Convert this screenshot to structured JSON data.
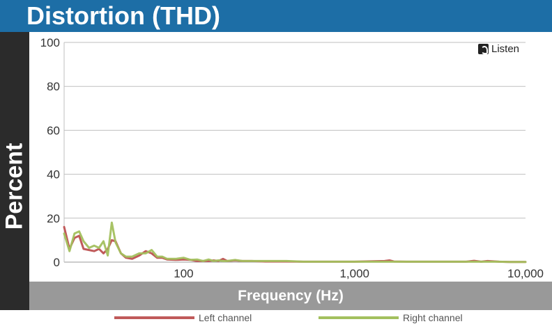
{
  "title": "Distortion (THD)",
  "brand": "Listen",
  "colors": {
    "title_bg": "#1d6ea6",
    "ylabel_bg": "#2b2b2b",
    "xlabel_bg": "#999999",
    "left": "#c05a5a",
    "right": "#a3c05e",
    "grid": "#bfbfbf"
  },
  "chart_data": {
    "type": "line",
    "title": "Distortion (THD)",
    "xlabel": "Frequency (Hz)",
    "ylabel": "Percent",
    "xscale": "log",
    "xlim": [
      20,
      10000
    ],
    "ylim": [
      0,
      100
    ],
    "yticks": [
      0,
      20,
      40,
      60,
      80,
      100
    ],
    "xticks": [
      {
        "value": 100,
        "label": "100"
      },
      {
        "value": 1000,
        "label": "1,000"
      },
      {
        "value": 10000,
        "label": "10,000"
      }
    ],
    "grid": "horizontal",
    "legend_position": "bottom",
    "series": [
      {
        "name": "Left channel",
        "color": "#c05a5a",
        "x": [
          20,
          21.5,
          23,
          24.5,
          26,
          28,
          30,
          32,
          34,
          36,
          38,
          40,
          43,
          46,
          50,
          55,
          60,
          65,
          70,
          75,
          80,
          90,
          100,
          110,
          120,
          130,
          140,
          150,
          160,
          170,
          180,
          200,
          220,
          250,
          300,
          400,
          500,
          700,
          1000,
          1500,
          1600,
          1700,
          2000,
          3000,
          4500,
          5000,
          5500,
          6000,
          7000,
          8000,
          10000
        ],
        "y": [
          16,
          6,
          11,
          12,
          6,
          5.5,
          5,
          6,
          4,
          6,
          10,
          9.5,
          4,
          2,
          1.5,
          3,
          5,
          4,
          2,
          2,
          1.2,
          1,
          1.2,
          1,
          0.5,
          0.5,
          0.5,
          0.8,
          0.5,
          1.5,
          0.5,
          0.8,
          0.5,
          0.5,
          0.3,
          0.3,
          0.2,
          0.2,
          0.2,
          0.5,
          0.8,
          0.3,
          0.2,
          0.2,
          0.2,
          0.6,
          0.2,
          0.5,
          0.2,
          0.1,
          0.1
        ]
      },
      {
        "name": "Right channel",
        "color": "#a3c05e",
        "x": [
          20,
          21.5,
          23,
          24.5,
          26,
          28,
          30,
          32,
          34,
          36,
          38,
          40,
          43,
          46,
          50,
          55,
          60,
          65,
          70,
          75,
          80,
          90,
          100,
          110,
          120,
          130,
          140,
          150,
          160,
          170,
          180,
          200,
          220,
          250,
          300,
          400,
          500,
          700,
          1000,
          1500,
          2000,
          3000,
          4500,
          5000,
          6000,
          7000,
          8000,
          10000
        ],
        "y": [
          13,
          5,
          13,
          14,
          9.5,
          6.5,
          7.5,
          6.5,
          9.5,
          3,
          18,
          9,
          4,
          2.5,
          2.5,
          4,
          4,
          5.5,
          2.5,
          2.5,
          1.5,
          1.5,
          2,
          1,
          1.2,
          0.5,
          1.2,
          0.5,
          0.8,
          0.5,
          0.5,
          1,
          0.5,
          0.5,
          0.5,
          0.5,
          0.2,
          0.2,
          0.2,
          0.2,
          0.2,
          0.2,
          0.2,
          0.2,
          0.2,
          0.2,
          0.1,
          0.1
        ]
      }
    ]
  }
}
